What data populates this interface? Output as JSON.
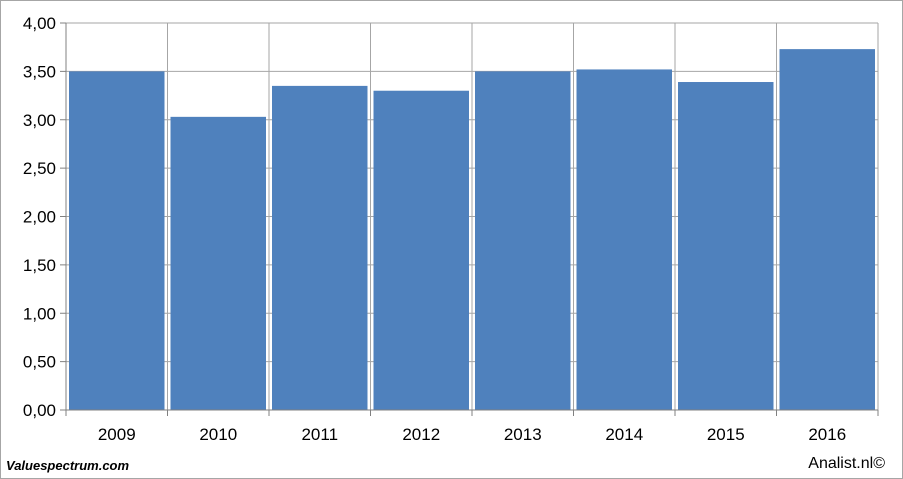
{
  "chart_data": {
    "type": "bar",
    "categories": [
      "2009",
      "2010",
      "2011",
      "2012",
      "2013",
      "2014",
      "2015",
      "2016"
    ],
    "values": [
      3.5,
      3.03,
      3.35,
      3.3,
      3.5,
      3.52,
      3.39,
      3.73
    ],
    "ylim": [
      0,
      4
    ],
    "y_ticks": [
      "0,00",
      "0,50",
      "1,00",
      "1,50",
      "2,00",
      "2,50",
      "3,00",
      "3,50",
      "4,00"
    ],
    "grid": true,
    "colors": {
      "bar": "#4f81bd",
      "grid": "#a6a6a6",
      "axis": "#808080"
    }
  },
  "footer": {
    "source": "Valuespectrum.com",
    "credit": "Analist.nl©"
  }
}
